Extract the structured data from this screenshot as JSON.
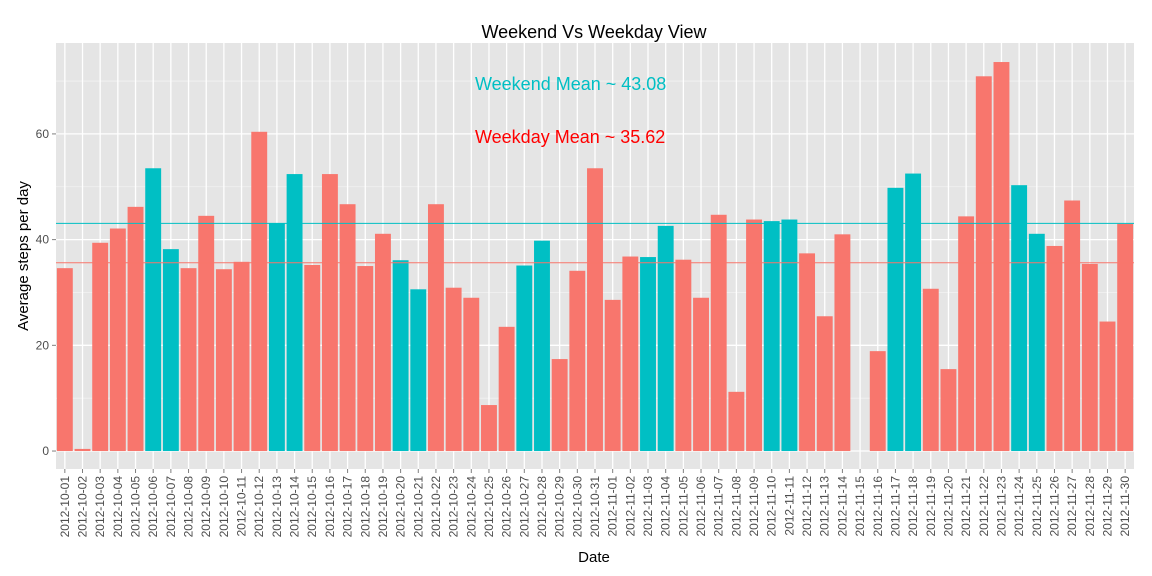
{
  "chart_data": {
    "type": "bar",
    "title": "Weekend Vs Weekday View",
    "xlabel": "Date",
    "ylabel": "Average steps per day",
    "ylim": [
      -3.4,
      77.2
    ],
    "yticks": [
      0,
      20,
      40,
      60
    ],
    "grid": true,
    "colors": {
      "weekday": "#F8766D",
      "weekend": "#00BFC4",
      "panel": "#E5E5E5",
      "gridline": "#FFFFFF"
    },
    "categories": [
      "2012-10-01",
      "2012-10-02",
      "2012-10-03",
      "2012-10-04",
      "2012-10-05",
      "2012-10-06",
      "2012-10-07",
      "2012-10-08",
      "2012-10-09",
      "2012-10-10",
      "2012-10-11",
      "2012-10-12",
      "2012-10-13",
      "2012-10-14",
      "2012-10-15",
      "2012-10-16",
      "2012-10-17",
      "2012-10-18",
      "2012-10-19",
      "2012-10-20",
      "2012-10-21",
      "2012-10-22",
      "2012-10-23",
      "2012-10-24",
      "2012-10-25",
      "2012-10-26",
      "2012-10-27",
      "2012-10-28",
      "2012-10-29",
      "2012-10-30",
      "2012-10-31",
      "2012-11-01",
      "2012-11-02",
      "2012-11-03",
      "2012-11-04",
      "2012-11-05",
      "2012-11-06",
      "2012-11-07",
      "2012-11-08",
      "2012-11-09",
      "2012-11-10",
      "2012-11-11",
      "2012-11-12",
      "2012-11-13",
      "2012-11-14",
      "2012-11-15",
      "2012-11-16",
      "2012-11-17",
      "2012-11-18",
      "2012-11-19",
      "2012-11-20",
      "2012-11-21",
      "2012-11-22",
      "2012-11-23",
      "2012-11-24",
      "2012-11-25",
      "2012-11-26",
      "2012-11-27",
      "2012-11-28",
      "2012-11-29",
      "2012-11-30"
    ],
    "values": [
      34.6,
      0.4,
      39.4,
      42.1,
      46.2,
      53.5,
      38.2,
      34.6,
      44.5,
      34.4,
      35.8,
      60.4,
      43.1,
      52.4,
      35.2,
      52.4,
      46.7,
      35.0,
      41.1,
      36.1,
      30.6,
      46.7,
      30.9,
      29.0,
      8.7,
      23.5,
      35.1,
      39.8,
      17.4,
      34.1,
      53.5,
      28.6,
      36.8,
      36.7,
      42.6,
      36.2,
      29.0,
      44.7,
      11.2,
      43.8,
      43.5,
      43.8,
      37.4,
      25.5,
      41.0,
      0,
      18.9,
      49.8,
      52.5,
      30.7,
      15.5,
      44.4,
      70.9,
      73.6,
      50.3,
      41.1,
      38.8,
      47.4,
      35.4,
      24.5,
      43.0
    ],
    "day_type": [
      "weekday",
      "weekday",
      "weekday",
      "weekday",
      "weekday",
      "weekend",
      "weekend",
      "weekday",
      "weekday",
      "weekday",
      "weekday",
      "weekday",
      "weekend",
      "weekend",
      "weekday",
      "weekday",
      "weekday",
      "weekday",
      "weekday",
      "weekend",
      "weekend",
      "weekday",
      "weekday",
      "weekday",
      "weekday",
      "weekday",
      "weekend",
      "weekend",
      "weekday",
      "weekday",
      "weekday",
      "weekday",
      "weekday",
      "weekend",
      "weekend",
      "weekday",
      "weekday",
      "weekday",
      "weekday",
      "weekday",
      "weekend",
      "weekend",
      "weekday",
      "weekday",
      "weekday",
      "weekday",
      "weekday",
      "weekend",
      "weekend",
      "weekday",
      "weekday",
      "weekday",
      "weekday",
      "weekday",
      "weekend",
      "weekend",
      "weekday",
      "weekday",
      "weekday",
      "weekday",
      "weekday"
    ],
    "hlines": [
      {
        "value": 43.08,
        "day_type": "weekend"
      },
      {
        "value": 35.62,
        "day_type": "weekday"
      }
    ],
    "annotations": [
      {
        "text": "Weekend Mean ~ 43.08",
        "day_type": "weekend"
      },
      {
        "text": "Weekday Mean ~ 35.62",
        "day_type": "weekday"
      }
    ]
  }
}
